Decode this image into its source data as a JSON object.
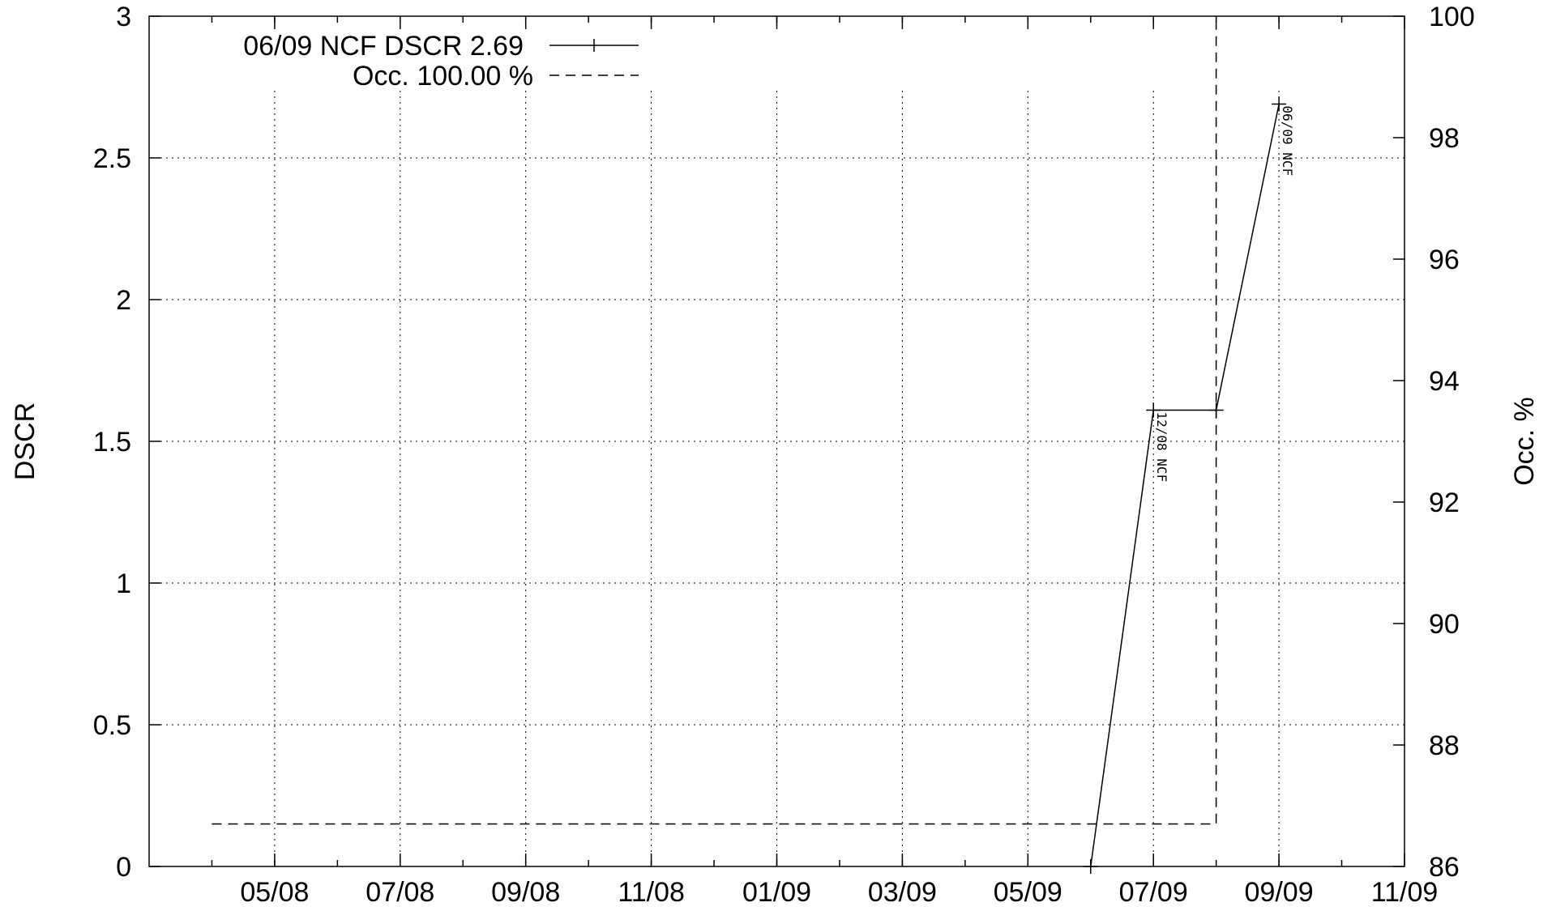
{
  "chart_data": {
    "type": "line",
    "title": "",
    "xlabel": "",
    "ylabel": "DSCR",
    "y2label": "Occ. %",
    "x_range": [
      "2008-03",
      "2009-11"
    ],
    "x_ticks": [
      "2008-05",
      "2008-07",
      "2008-09",
      "2008-11",
      "2009-01",
      "2009-03",
      "2009-05",
      "2009-07",
      "2009-09",
      "2009-11"
    ],
    "x_tick_labels": [
      "05/08",
      "07/08",
      "09/08",
      "11/08",
      "01/09",
      "03/09",
      "05/09",
      "07/09",
      "09/09",
      "11/09"
    ],
    "ylim": [
      0,
      3
    ],
    "y_ticks": [
      0,
      0.5,
      1,
      1.5,
      2,
      2.5,
      3
    ],
    "y_tick_labels": [
      "0",
      "0.5",
      "1",
      "1.5",
      "2",
      "2.5",
      "3"
    ],
    "y2lim": [
      86,
      100
    ],
    "y2_ticks": [
      86,
      88,
      90,
      92,
      94,
      96,
      98,
      100
    ],
    "y2_tick_labels": [
      "86",
      "88",
      "90",
      "92",
      "94",
      "96",
      "98",
      "100"
    ],
    "grid": true,
    "legend_position": "top-left",
    "series": [
      {
        "name": "06/09 NCF DSCR 2.69",
        "axis": "left",
        "style": "solid-with-points",
        "points": [
          {
            "x": "2009-06",
            "y": 0
          },
          {
            "x": "2009-07",
            "y": 1.61
          },
          {
            "x": "2009-08",
            "y": 1.61
          },
          {
            "x": "2009-09",
            "y": 2.69
          }
        ]
      },
      {
        "name": "Occ. 100.00  %",
        "axis": "right",
        "style": "dashed",
        "points": [
          {
            "x": "2008-04",
            "y": 86.7
          },
          {
            "x": "2009-08",
            "y": 86.7
          },
          {
            "x": "2009-08",
            "y": 100
          }
        ]
      }
    ],
    "annotations": [
      {
        "text": "12/08 NCF",
        "x": "2009-07",
        "y": 1.61
      },
      {
        "text": "06/09 NCF",
        "x": "2009-09",
        "y": 2.69
      }
    ]
  }
}
